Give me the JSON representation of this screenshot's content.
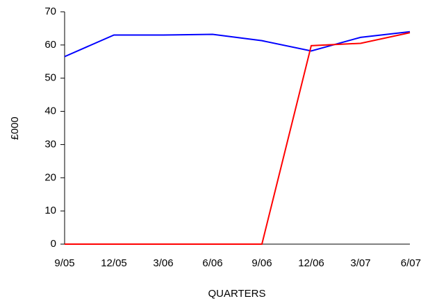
{
  "chart_data": {
    "type": "line",
    "y_label": "£000",
    "x_label": "QUARTERS",
    "categories": [
      "9/05",
      "12/05",
      "3/06",
      "6/06",
      "9/06",
      "12/06",
      "3/07",
      "6/07"
    ],
    "series": [
      {
        "color": "#0000ff",
        "values": [
          56.5,
          63,
          63,
          63.2,
          61.3,
          58.2,
          62.3,
          64
        ]
      },
      {
        "color": "#ff0000",
        "values": [
          0,
          0,
          0,
          0,
          0,
          59.8,
          60.5,
          63.7
        ]
      }
    ],
    "ylim": [
      0,
      70
    ],
    "yticks": [
      0,
      10,
      20,
      30,
      40,
      50,
      60,
      70
    ],
    "grid": false
  }
}
